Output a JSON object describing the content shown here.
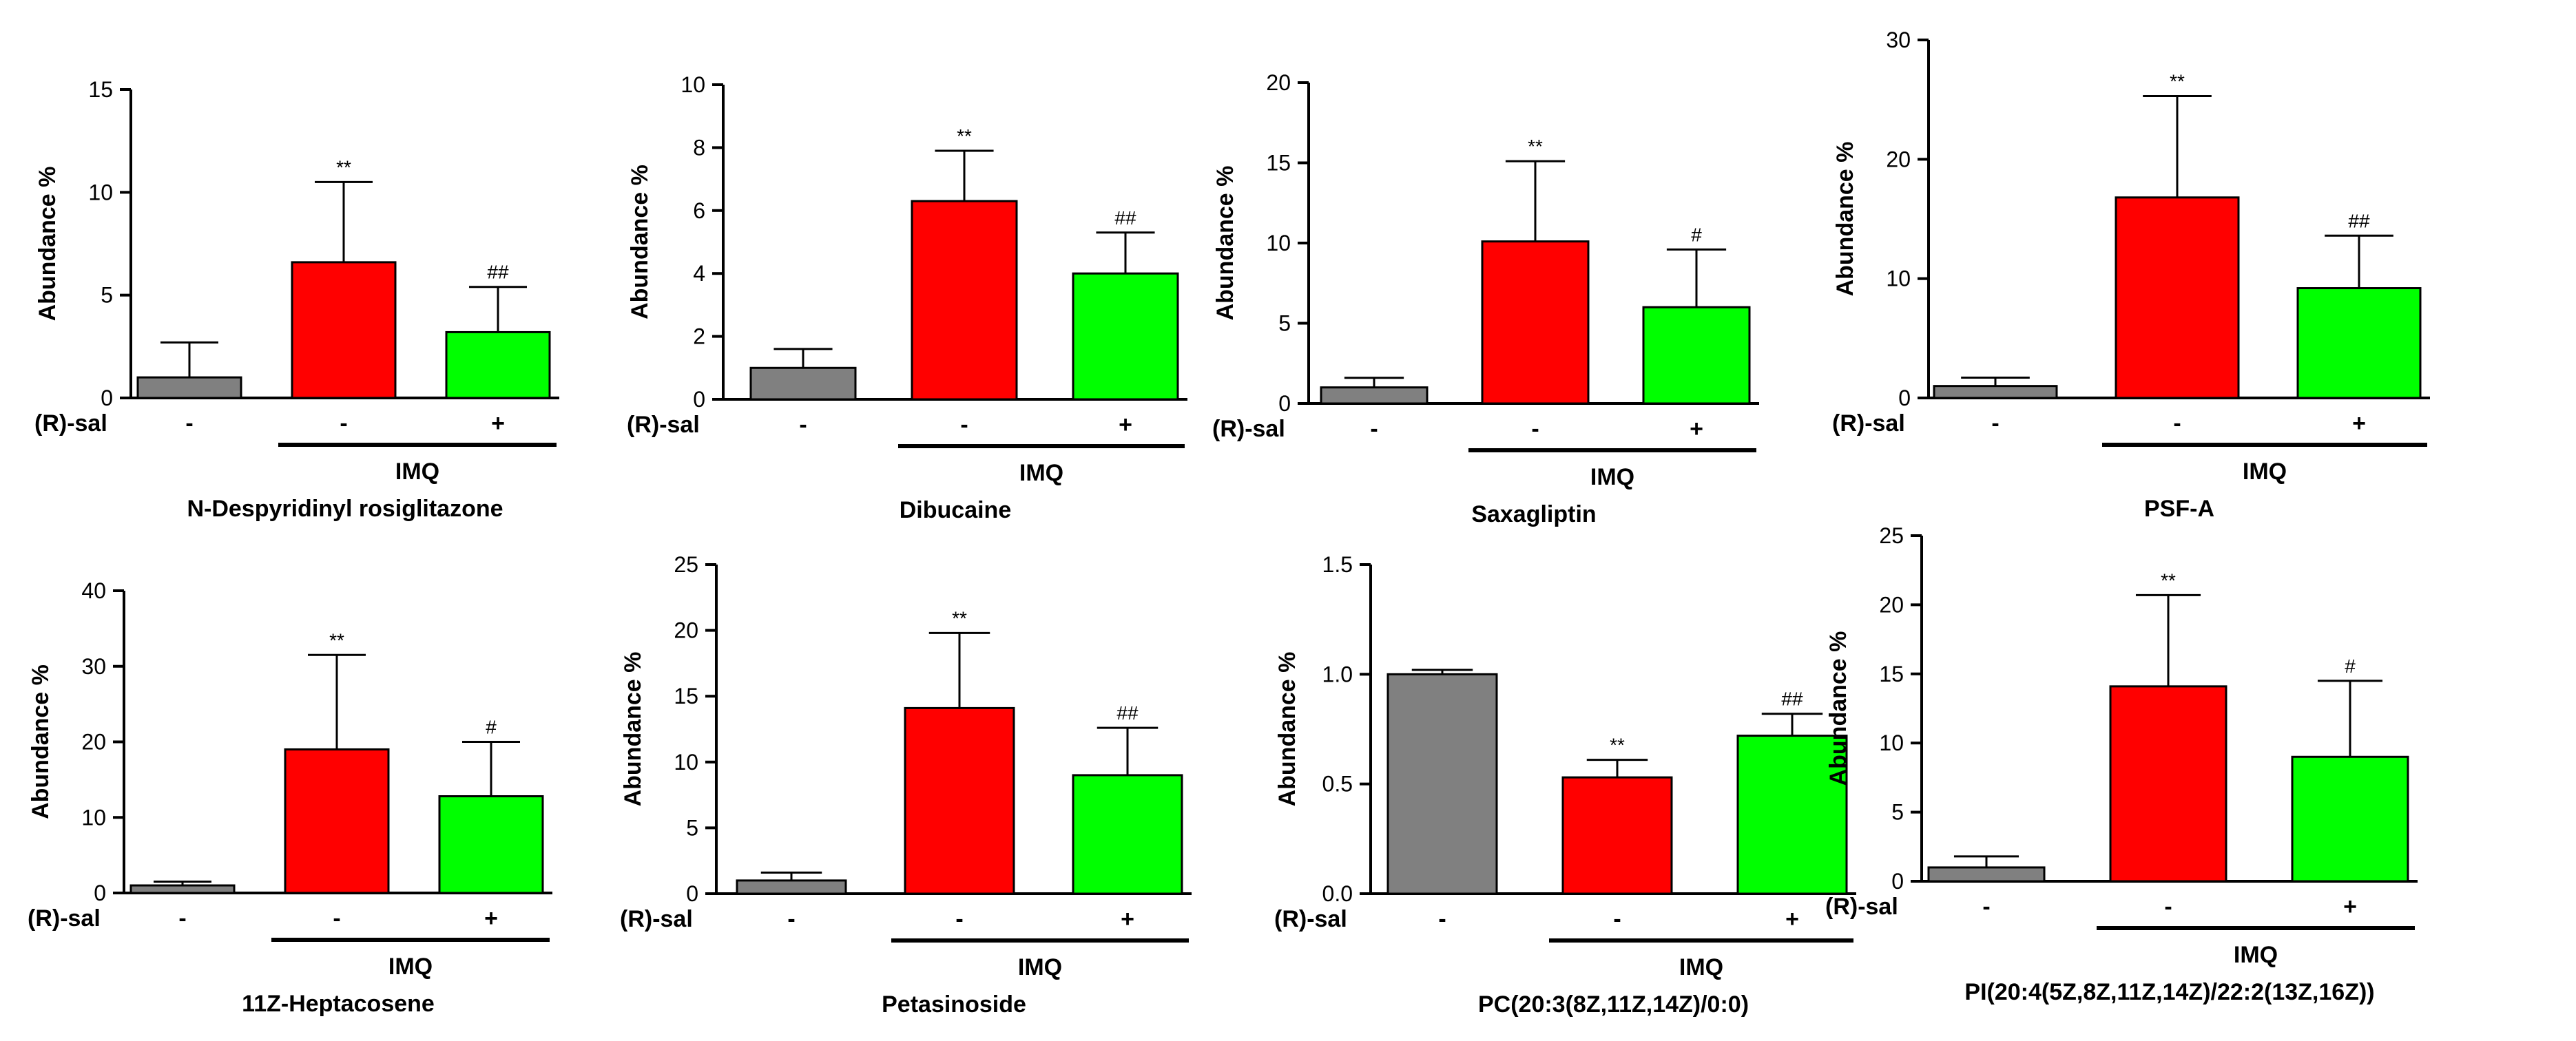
{
  "figure": {
    "treatment_label": "(R)-sal",
    "group_label": "IMQ",
    "colors": {
      "control": "#808080",
      "imq": "#ff0000",
      "imq_rsal": "#00ff00",
      "axis": "#000000"
    }
  },
  "chart_data": [
    {
      "type": "bar",
      "title": "N-Despyridinyl rosiglitazone",
      "ylabel": "Abundance %",
      "ylim": [
        0,
        15
      ],
      "yticks": [
        "0",
        "5",
        "10",
        "15"
      ],
      "categories": [
        "control",
        "IMQ",
        "IMQ + (R)-sal"
      ],
      "treatment_marks": [
        "-",
        "-",
        "+"
      ],
      "values": [
        1.0,
        6.6,
        3.2
      ],
      "errors": [
        1.7,
        3.9,
        2.2
      ],
      "significance": [
        "",
        "**",
        "##"
      ]
    },
    {
      "type": "bar",
      "title": "Dibucaine",
      "ylabel": "Abundance %",
      "ylim": [
        0,
        10
      ],
      "yticks": [
        "0",
        "2",
        "4",
        "6",
        "8",
        "10"
      ],
      "categories": [
        "control",
        "IMQ",
        "IMQ + (R)-sal"
      ],
      "treatment_marks": [
        "-",
        "-",
        "+"
      ],
      "values": [
        1.0,
        6.3,
        4.0
      ],
      "errors": [
        0.6,
        1.6,
        1.3
      ],
      "significance": [
        "",
        "**",
        "##"
      ]
    },
    {
      "type": "bar",
      "title": "Saxagliptin",
      "ylabel": "Abundance %",
      "ylim": [
        0,
        20
      ],
      "yticks": [
        "0",
        "5",
        "10",
        "15",
        "20"
      ],
      "categories": [
        "control",
        "IMQ",
        "IMQ + (R)-sal"
      ],
      "treatment_marks": [
        "-",
        "-",
        "+"
      ],
      "values": [
        1.0,
        10.1,
        6.0
      ],
      "errors": [
        0.6,
        5.0,
        3.6
      ],
      "significance": [
        "",
        "**",
        "#"
      ]
    },
    {
      "type": "bar",
      "title": "PSF-A",
      "ylabel": "Abundance %",
      "ylim": [
        0,
        30
      ],
      "yticks": [
        "0",
        "10",
        "20",
        "30"
      ],
      "categories": [
        "control",
        "IMQ",
        "IMQ + (R)-sal"
      ],
      "treatment_marks": [
        "-",
        "-",
        "+"
      ],
      "values": [
        1.0,
        16.8,
        9.2
      ],
      "errors": [
        0.7,
        8.5,
        4.4
      ],
      "significance": [
        "",
        "**",
        "##"
      ]
    },
    {
      "type": "bar",
      "title": "11Z-Heptacosene",
      "ylabel": "Abundance %",
      "ylim": [
        0,
        40
      ],
      "yticks": [
        "0",
        "10",
        "20",
        "30",
        "40"
      ],
      "categories": [
        "control",
        "IMQ",
        "IMQ + (R)-sal"
      ],
      "treatment_marks": [
        "-",
        "-",
        "+"
      ],
      "values": [
        1.0,
        19.0,
        12.8
      ],
      "errors": [
        0.5,
        12.5,
        7.2
      ],
      "significance": [
        "",
        "**",
        "#"
      ]
    },
    {
      "type": "bar",
      "title": "Petasinoside",
      "ylabel": "Abundance %",
      "ylim": [
        0,
        25
      ],
      "yticks": [
        "0",
        "5",
        "10",
        "15",
        "20",
        "25"
      ],
      "categories": [
        "control",
        "IMQ",
        "IMQ + (R)-sal"
      ],
      "treatment_marks": [
        "-",
        "-",
        "+"
      ],
      "values": [
        1.0,
        14.1,
        9.0
      ],
      "errors": [
        0.6,
        5.7,
        3.6
      ],
      "significance": [
        "",
        "**",
        "##"
      ]
    },
    {
      "type": "bar",
      "title": "PC(20:3(8Z,11Z,14Z)/0:0)",
      "ylabel": "Abundance %",
      "ylim": [
        0,
        1.5
      ],
      "yticks": [
        "0.0",
        "0.5",
        "1.0",
        "1.5"
      ],
      "categories": [
        "control",
        "IMQ",
        "IMQ + (R)-sal"
      ],
      "treatment_marks": [
        "-",
        "-",
        "+"
      ],
      "values": [
        1.0,
        0.53,
        0.72
      ],
      "errors": [
        0.02,
        0.08,
        0.1
      ],
      "significance": [
        "",
        "**",
        "##"
      ]
    },
    {
      "type": "bar",
      "title": "PI(20:4(5Z,8Z,11Z,14Z)/22:2(13Z,16Z))",
      "ylabel": "Abundance %",
      "ylim": [
        0,
        25
      ],
      "yticks": [
        "0",
        "5",
        "10",
        "15",
        "20",
        "25"
      ],
      "categories": [
        "control",
        "IMQ",
        "IMQ + (R)-sal"
      ],
      "treatment_marks": [
        "-",
        "-",
        "+"
      ],
      "values": [
        1.0,
        14.1,
        9.0
      ],
      "errors": [
        0.8,
        6.6,
        5.5
      ],
      "significance": [
        "",
        "**",
        "#"
      ]
    }
  ]
}
